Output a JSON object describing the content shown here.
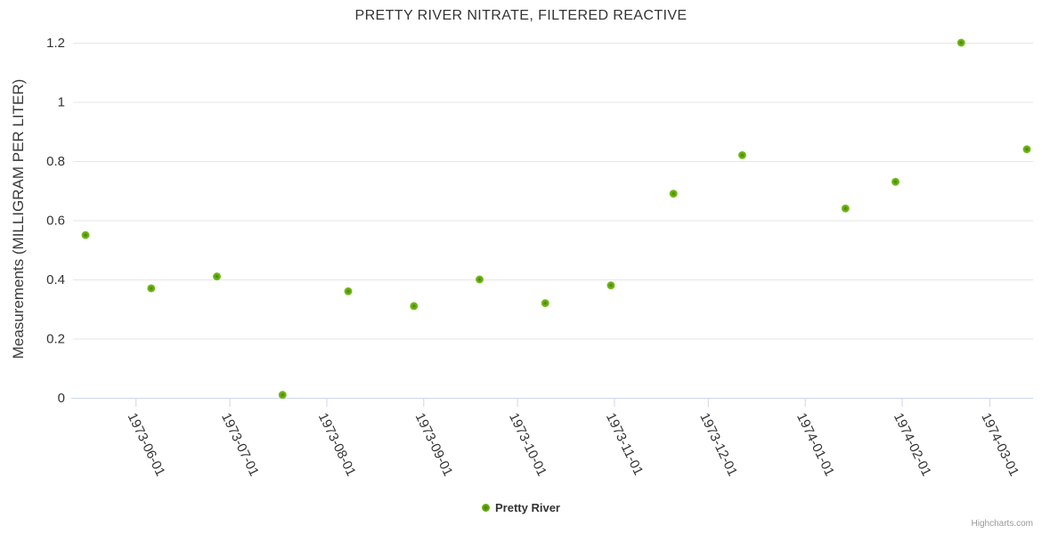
{
  "title": "PRETTY RIVER NITRATE, FILTERED REACTIVE",
  "credits": "Highcharts.com",
  "legend": {
    "items": [
      {
        "label": "Pretty River",
        "marker": "circle-icon",
        "color": "#68ab07"
      }
    ]
  },
  "colors": {
    "marker_core": "#447f05",
    "marker_mid": "#66ab11",
    "marker_edge": "#7ec227",
    "grid": "#e6e6e6",
    "axis_line": "#ccd6eb",
    "label_text": "#333333",
    "credits_text": "#999999"
  },
  "chart_data": {
    "type": "scatter",
    "title": "PRETTY RIVER NITRATE, FILTERED REACTIVE",
    "xlabel": "",
    "ylabel": "Measurements (MILLIGRAM PER LITER)",
    "x_type": "datetime",
    "x_range": [
      "1973-05-12",
      "1974-03-15"
    ],
    "x_ticks": [
      "1973-06-01",
      "1973-07-01",
      "1973-08-01",
      "1973-09-01",
      "1973-10-01",
      "1973-11-01",
      "1973-12-01",
      "1974-01-01",
      "1974-02-01",
      "1974-03-01"
    ],
    "ylim": [
      0,
      1.2
    ],
    "y_ticks": [
      0,
      0.2,
      0.4,
      0.6,
      0.8,
      1,
      1.2
    ],
    "y_tick_labels": [
      "0",
      "0.2",
      "0.4",
      "0.6",
      "0.8",
      "1",
      "1.2"
    ],
    "grid": "horizontal",
    "legend_position": "bottom-center",
    "series": [
      {
        "name": "Pretty River",
        "color": "#68ab07",
        "points": [
          {
            "date": "1973-05-16",
            "value": 0.55
          },
          {
            "date": "1973-06-06",
            "value": 0.37
          },
          {
            "date": "1973-06-27",
            "value": 0.41
          },
          {
            "date": "1973-07-18",
            "value": 0.01
          },
          {
            "date": "1973-08-08",
            "value": 0.36
          },
          {
            "date": "1973-08-29",
            "value": 0.31
          },
          {
            "date": "1973-09-19",
            "value": 0.4
          },
          {
            "date": "1973-10-10",
            "value": 0.32
          },
          {
            "date": "1973-10-31",
            "value": 0.38
          },
          {
            "date": "1973-11-20",
            "value": 0.69
          },
          {
            "date": "1973-12-12",
            "value": 0.82
          },
          {
            "date": "1974-01-14",
            "value": 0.64
          },
          {
            "date": "1974-01-30",
            "value": 0.73
          },
          {
            "date": "1974-02-20",
            "value": 1.2
          },
          {
            "date": "1974-03-13",
            "value": 0.84
          }
        ]
      }
    ]
  }
}
